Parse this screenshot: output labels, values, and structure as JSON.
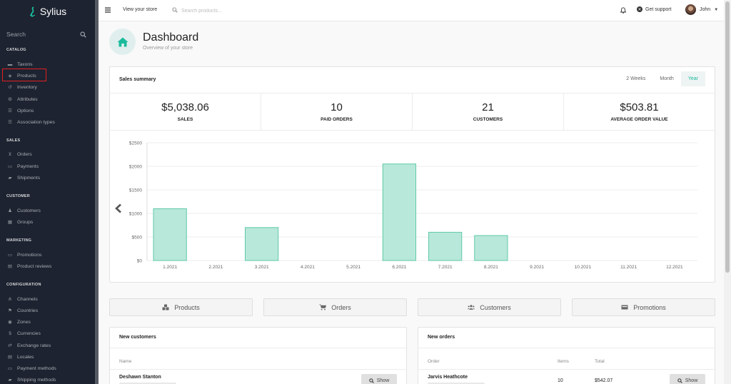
{
  "app": {
    "brand": "Sylius"
  },
  "sidebar": {
    "search_label": "Search",
    "sections": {
      "catalog": "CATALOG",
      "sales": "SALES",
      "customer": "CUSTOMER",
      "marketing": "MARKETING",
      "configuration": "CONFIGURATION"
    },
    "items": {
      "taxons": "Taxons",
      "products": "Products",
      "inventory": "Inventory",
      "attributes": "Attributes",
      "options": "Options",
      "association_types": "Association types",
      "orders": "Orders",
      "payments": "Payments",
      "shipments": "Shipments",
      "customers": "Customers",
      "groups": "Groups",
      "promotions": "Promotions",
      "product_reviews": "Product reviews",
      "channels": "Channels",
      "countries": "Countries",
      "zones": "Zones",
      "currencies": "Currencies",
      "exchange_rates": "Exchange rates",
      "locales": "Locales",
      "payment_methods": "Payment methods",
      "shipping_methods": "Shipping methods"
    }
  },
  "topbar": {
    "view_store": "View your store",
    "search_placeholder": "Search products...",
    "support": "Get support",
    "user": "John"
  },
  "header": {
    "title": "Dashboard",
    "subtitle": "Overview of your store"
  },
  "sales_summary": {
    "title": "Sales summary",
    "periods": [
      "2 Weeks",
      "Month",
      "Year"
    ],
    "active_period": "Year",
    "stats": [
      {
        "value": "$5,038.06",
        "label": "SALES"
      },
      {
        "value": "10",
        "label": "PAID ORDERS"
      },
      {
        "value": "21",
        "label": "CUSTOMERS"
      },
      {
        "value": "$503.81",
        "label": "AVERAGE ORDER VALUE"
      }
    ]
  },
  "chart_data": {
    "type": "bar",
    "categories": [
      "1.2021",
      "2.2021",
      "3.2021",
      "4.2021",
      "5.2021",
      "6.2021",
      "7.2021",
      "8.2021",
      "9.2021",
      "10.2021",
      "11.2021",
      "12.2021"
    ],
    "values": [
      1100,
      0,
      700,
      0,
      0,
      2050,
      600,
      530,
      0,
      0,
      0,
      0
    ],
    "yticks": [
      "$0",
      "$500",
      "$1000",
      "$1500",
      "$2000",
      "$2500"
    ],
    "ylim": [
      0,
      2500
    ],
    "grid": true,
    "colors": {
      "fill": "#b8e8da",
      "stroke": "#5fc9a8"
    }
  },
  "quick_links": {
    "products": "Products",
    "orders": "Orders",
    "customers": "Customers",
    "promotions": "Promotions"
  },
  "new_customers": {
    "title": "New customers",
    "col_name": "Name",
    "row_name": "Deshawn Stanton",
    "show": "Show"
  },
  "new_orders": {
    "title": "New orders",
    "col_order": "Order",
    "col_items": "Items",
    "col_total": "Total",
    "row_name": "Jarvis Heathcote",
    "row_items": "10",
    "row_total": "$542.07",
    "show": "Show"
  },
  "colors": {
    "accent": "#1abb9c",
    "sidebar_bg": "#1d2330"
  }
}
